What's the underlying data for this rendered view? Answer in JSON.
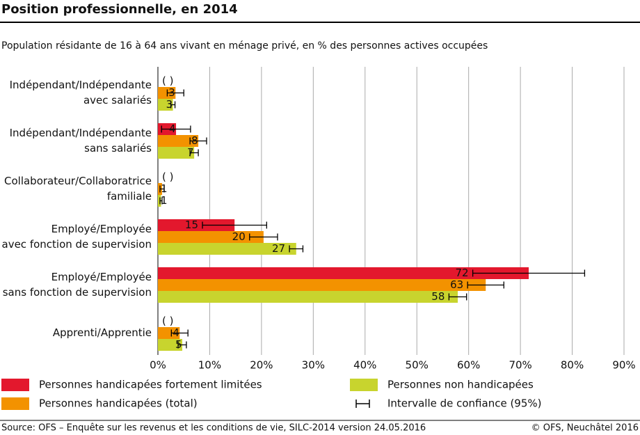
{
  "chart_data": {
    "type": "hbar_error",
    "title": "Position professionnelle, en 2014",
    "subtitle": "Population résidante de 16 à 64 ans vivant en ménage privé, en % des personnes actives occupées",
    "categories": [
      [
        "Indépendant/Indépendante",
        "avec salariés"
      ],
      [
        "Indépendant/Indépendante",
        "sans salariés"
      ],
      [
        "Collaborateur/Collaboratrice",
        "familiale"
      ],
      [
        "Employé/Employée",
        "avec fonction de supervision"
      ],
      [
        "Employé/Employée",
        "sans fonction de supervision"
      ],
      [
        "Apprenti/Apprentie"
      ]
    ],
    "series": [
      {
        "name": "Personnes handicapées fortement limitées",
        "color": "#e3182d",
        "values": [
          null,
          3.5,
          null,
          14.8,
          71.6,
          null
        ],
        "errors": [
          null,
          2.8,
          null,
          6.2,
          10.8,
          null
        ],
        "value_labels": [
          "( )",
          "4",
          "( )",
          "15",
          "72",
          "( )"
        ]
      },
      {
        "name": "Personnes handicapées (total)",
        "color": "#f39200",
        "values": [
          3.4,
          7.8,
          0.8,
          20.4,
          63.3,
          4.2
        ],
        "errors": [
          1.6,
          1.6,
          0.4,
          2.7,
          3.5,
          1.6
        ],
        "value_labels": [
          "3",
          "8",
          "1",
          "20",
          "63",
          "4"
        ]
      },
      {
        "name": "Personnes non handicapées",
        "color": "#c8d42e",
        "values": [
          2.9,
          7.0,
          0.6,
          26.7,
          57.9,
          4.7
        ],
        "errors": [
          0.4,
          0.8,
          0.2,
          1.3,
          1.7,
          0.8
        ],
        "value_labels": [
          "3",
          "7",
          "1",
          "27",
          "58",
          "5"
        ]
      }
    ],
    "ci_label": "Intervalle de confiance (95%)",
    "xlim": [
      0,
      90
    ],
    "xticks": [
      {
        "value": 0,
        "label": "0%"
      },
      {
        "value": 10,
        "label": "10%"
      },
      {
        "value": 20,
        "label": "20%"
      },
      {
        "value": 30,
        "label": "30%"
      },
      {
        "value": 40,
        "label": "40%"
      },
      {
        "value": 50,
        "label": "50%"
      },
      {
        "value": 60,
        "label": "60%"
      },
      {
        "value": 70,
        "label": "70%"
      },
      {
        "value": 80,
        "label": "80%"
      },
      {
        "value": 90,
        "label": "90%"
      }
    ],
    "grid": true,
    "source": "Source: OFS – Enquête sur les revenus et les conditions de vie, SILC-2014 version 24.05.2016",
    "copyright": "© OFS, Neuchâtel 2016"
  }
}
